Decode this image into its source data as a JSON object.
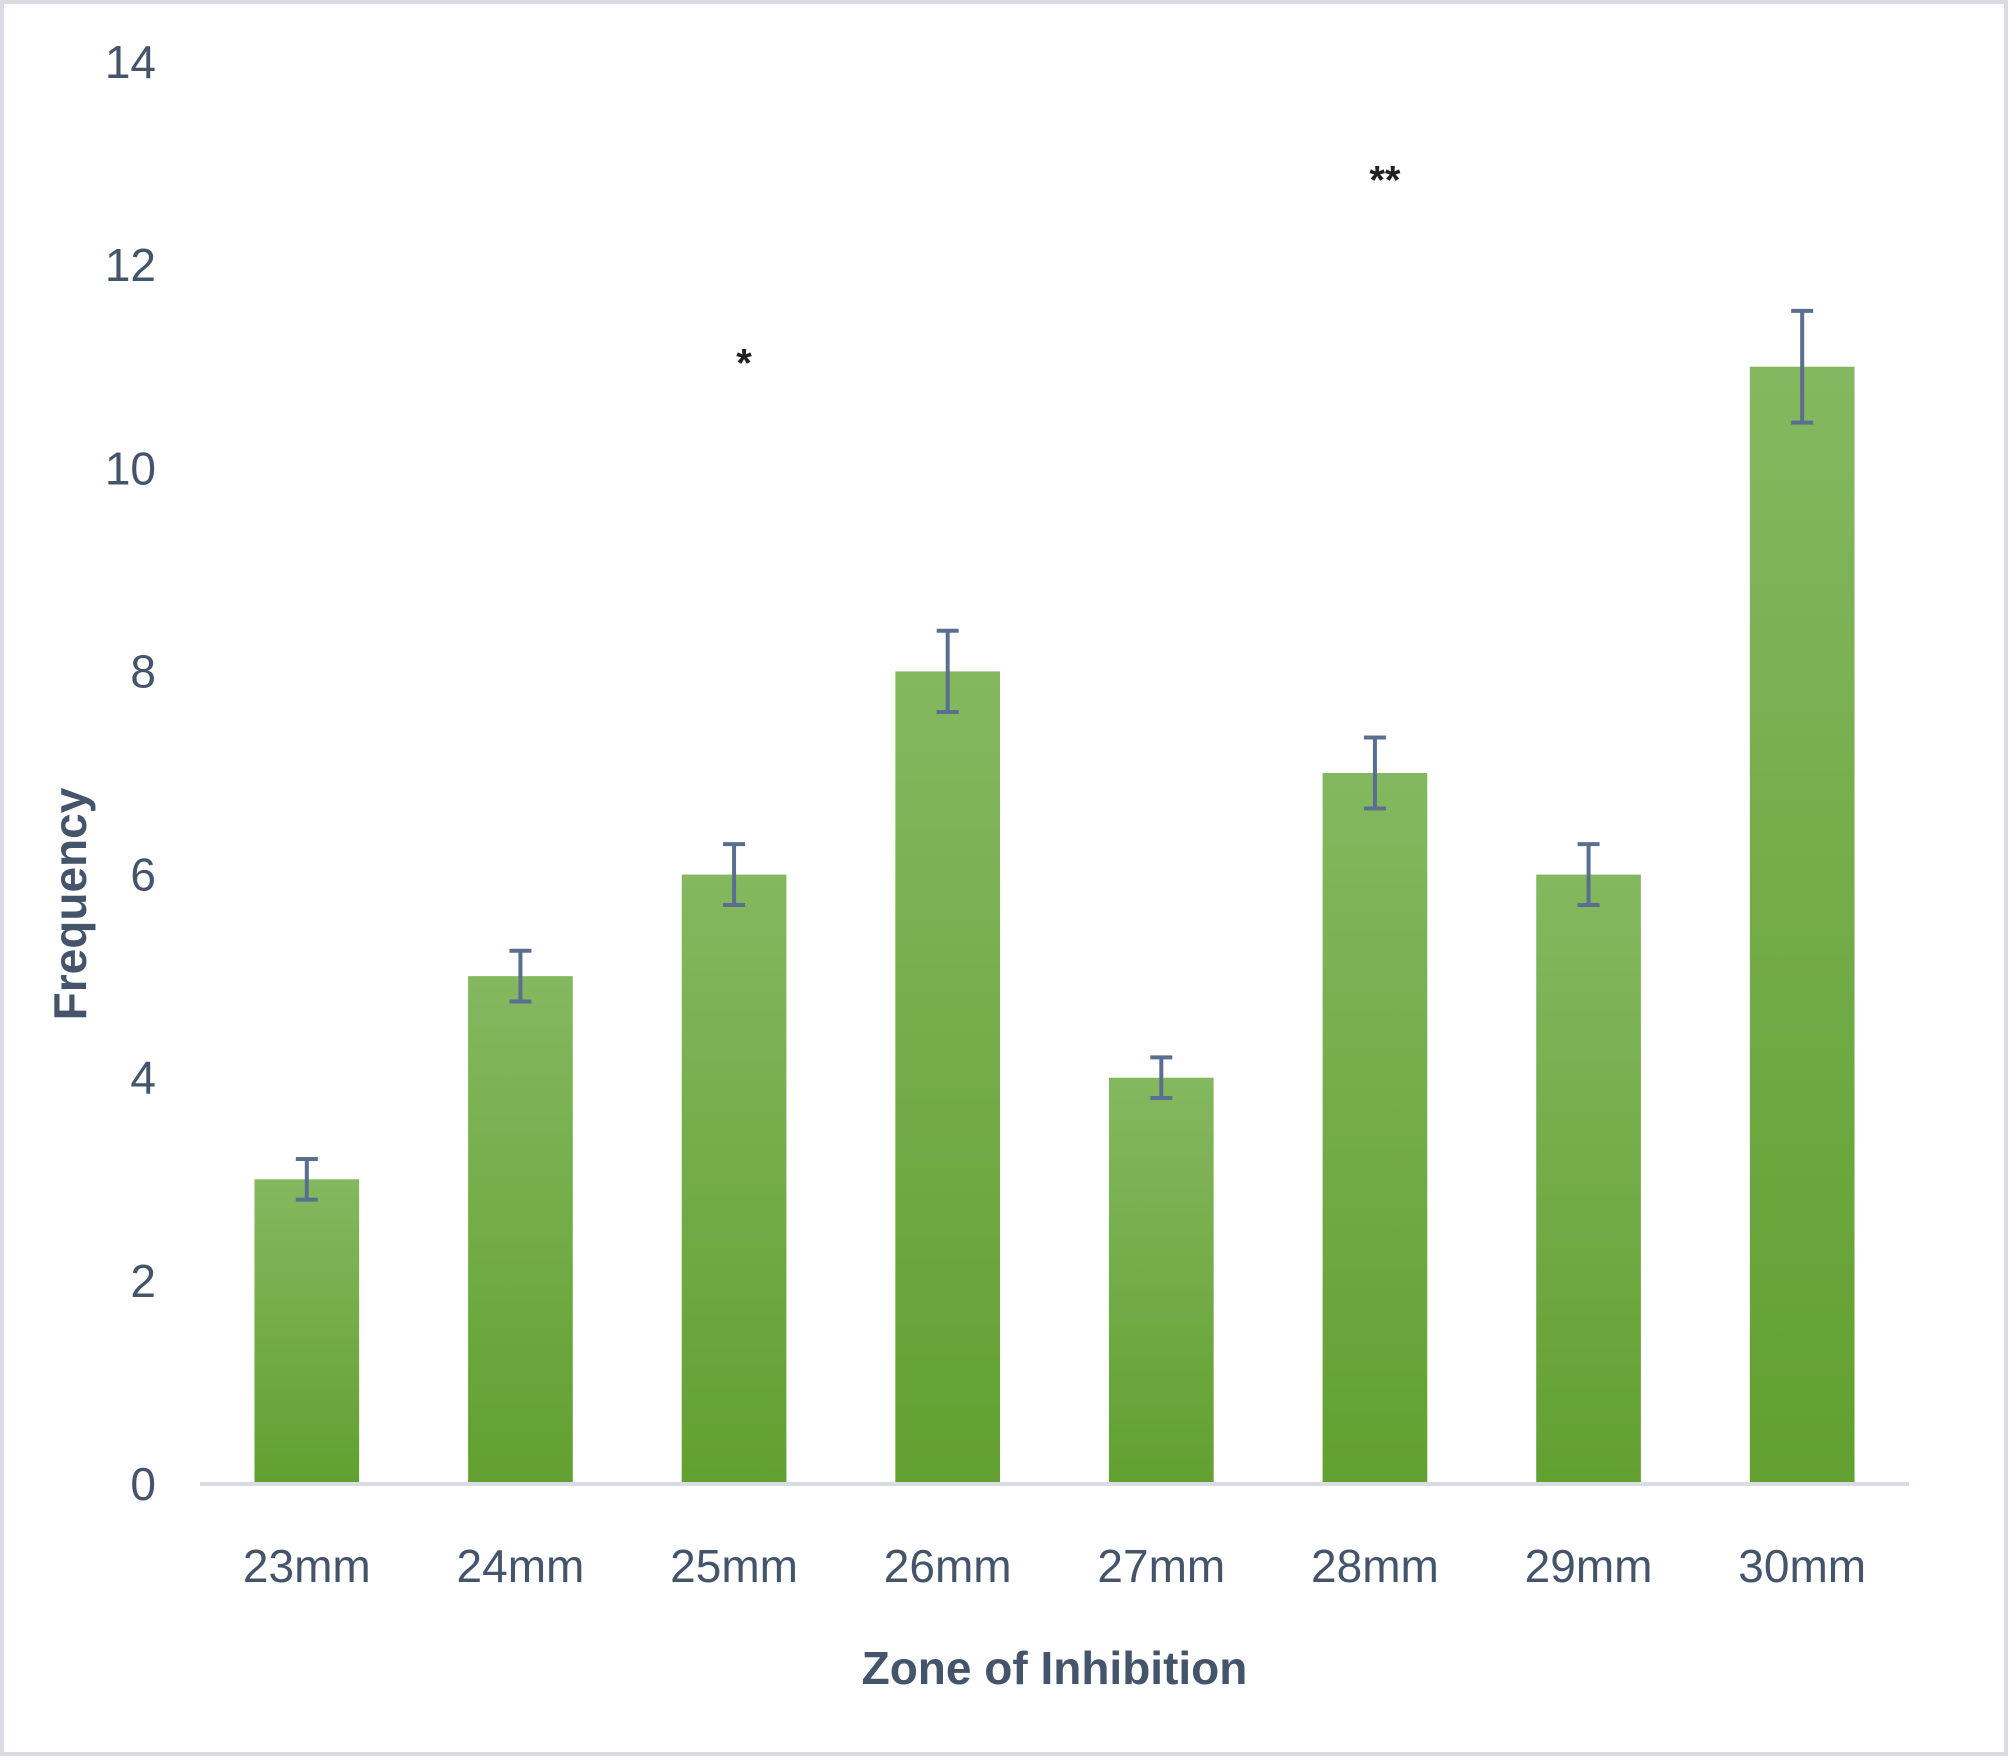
{
  "chart_data": {
    "type": "bar",
    "title": "",
    "xlabel": "Zone of Inhibition",
    "ylabel": "Frequency",
    "categories": [
      "23mm",
      "24mm",
      "25mm",
      "26mm",
      "27mm",
      "28mm",
      "29mm",
      "30mm"
    ],
    "values": [
      3,
      5,
      6,
      8,
      4,
      7,
      6,
      11
    ],
    "error": [
      0.2,
      0.25,
      0.3,
      0.4,
      0.2,
      0.35,
      0.3,
      0.55
    ],
    "ylim": [
      0,
      14
    ],
    "yticks": [
      0,
      2,
      4,
      6,
      8,
      10,
      12,
      14
    ],
    "yticklabels": [
      "0",
      "2",
      "4",
      "6",
      "8",
      "10",
      "12",
      "14"
    ],
    "grid": false,
    "legend": "none",
    "annotations": [
      {
        "category": "25mm",
        "text": "*",
        "y": 11.1
      },
      {
        "category": "28mm",
        "text": "**",
        "y": 12.9
      }
    ],
    "colors": {
      "bar_top": "#84b860",
      "bar_bottom": "#62a030",
      "error_bar": "#5a6f8f",
      "axis": "#d9dde3",
      "text": "#44546a"
    }
  }
}
